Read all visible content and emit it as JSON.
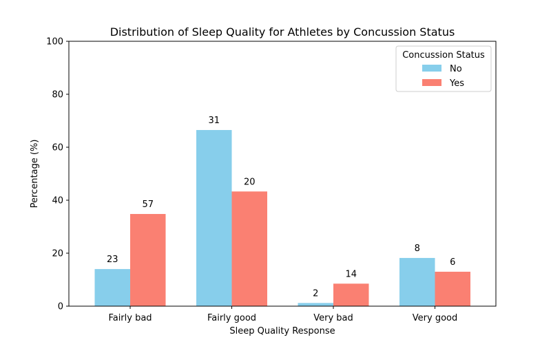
{
  "chart_data": {
    "type": "bar",
    "title": "Distribution of Sleep Quality for Athletes by Concussion Status",
    "xlabel": "Sleep Quality Response",
    "ylabel": "Percentage (%)",
    "ylim": [
      0,
      100
    ],
    "yticks": [
      "0",
      "20",
      "40",
      "60",
      "80",
      "100"
    ],
    "categories": [
      "Fairly bad",
      "Fairly good",
      "Very bad",
      "Very good"
    ],
    "legend": {
      "title": "Concussion Status",
      "placement": "top-right"
    },
    "series": [
      {
        "name": "No",
        "color": "#87ceeb",
        "values": [
          14.0,
          66.5,
          1.2,
          18.2
        ],
        "labels": [
          "23",
          "31",
          "2",
          "8"
        ]
      },
      {
        "name": "Yes",
        "color": "#fa8072",
        "values": [
          34.8,
          43.3,
          8.5,
          13.0
        ],
        "labels": [
          "57",
          "20",
          "14",
          "6"
        ]
      }
    ]
  }
}
